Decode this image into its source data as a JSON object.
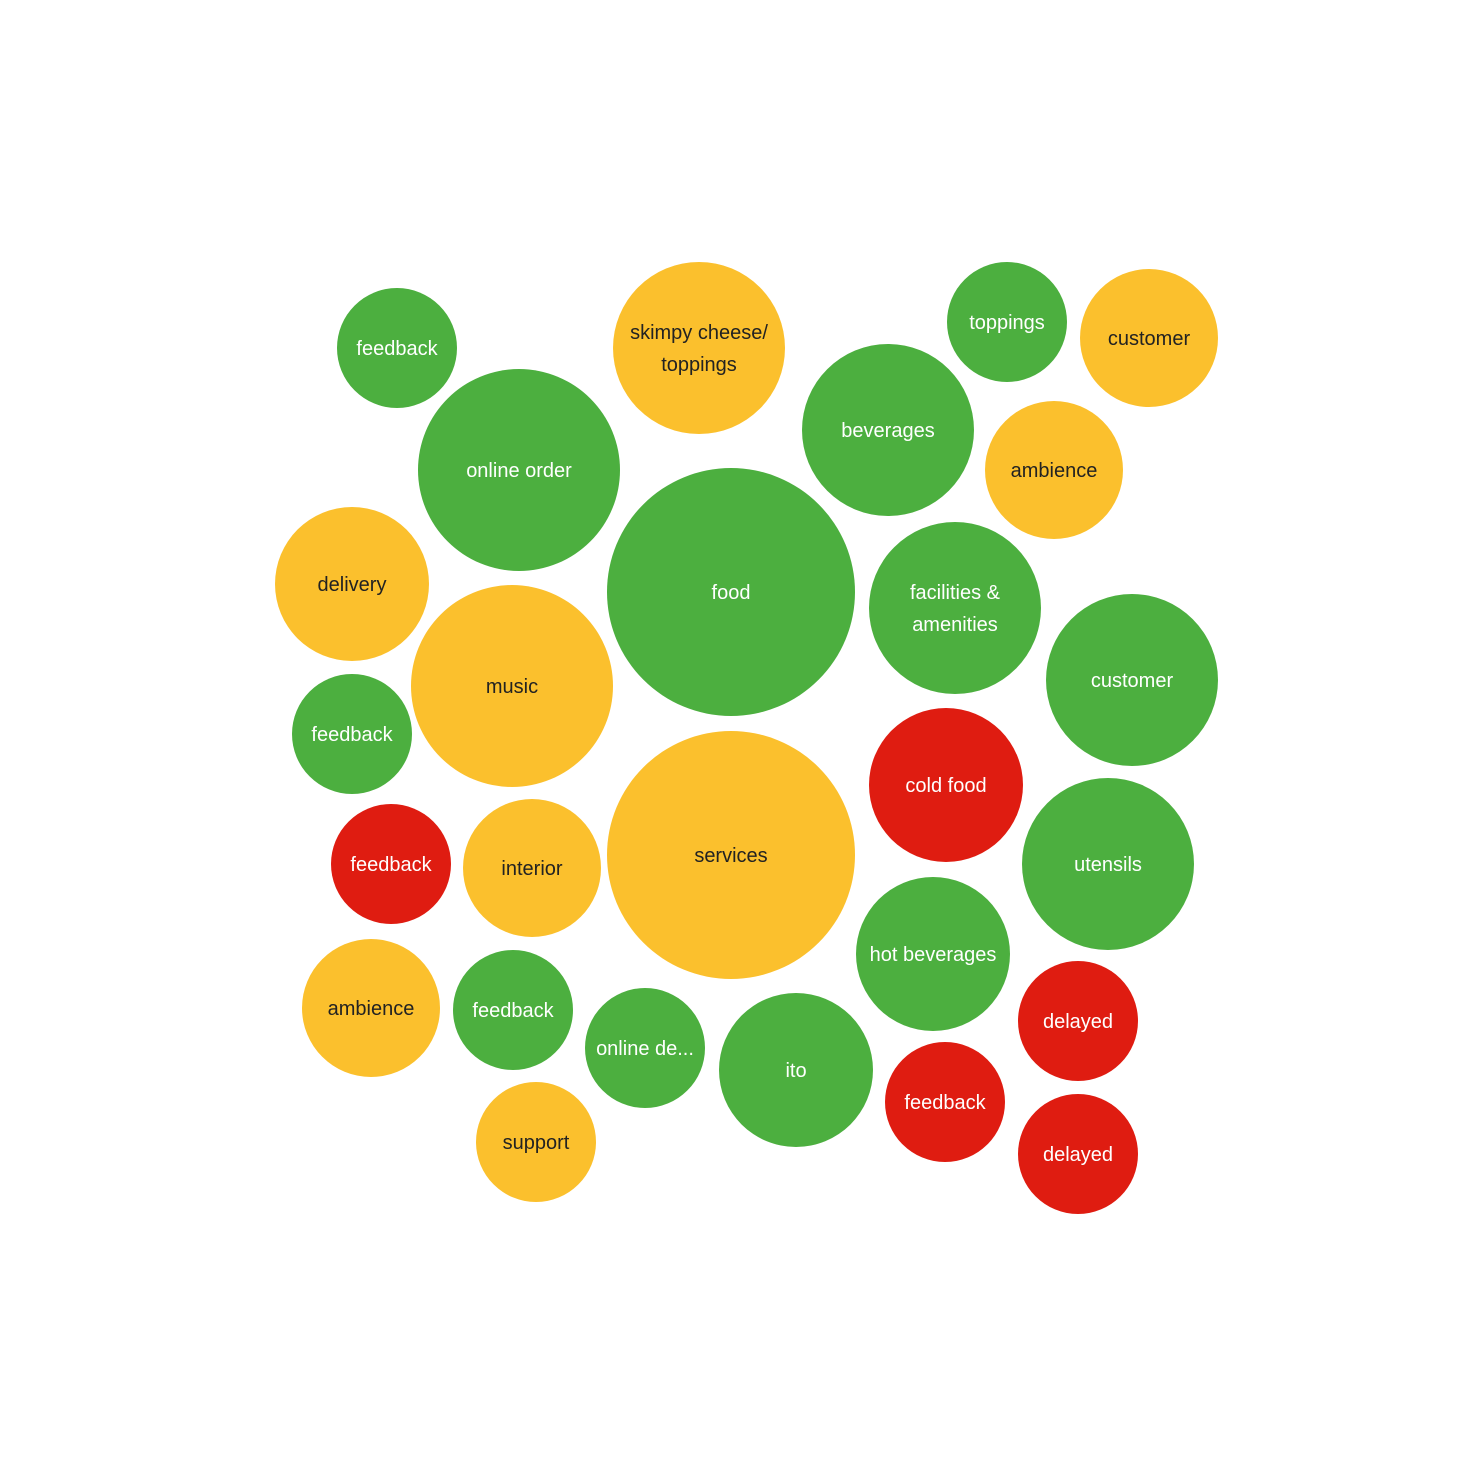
{
  "colors": {
    "green": "#4caf3f",
    "yellow": "#fbc02d",
    "red": "#df1c11",
    "label_on_green": "#ffffff",
    "label_on_red": "#ffffff",
    "label_on_yellow": "#222222"
  },
  "chart_data": {
    "type": "bubble",
    "title": "",
    "bubbles": [
      {
        "label": "feedback",
        "lines": [
          "feedback"
        ],
        "color": "green"
      },
      {
        "label": "skimpy cheese/ toppings",
        "lines": [
          "skimpy cheese/",
          "toppings"
        ],
        "color": "yellow"
      },
      {
        "label": "toppings",
        "lines": [
          "toppings"
        ],
        "color": "green"
      },
      {
        "label": "customer",
        "lines": [
          "customer"
        ],
        "color": "yellow"
      },
      {
        "label": "online order",
        "lines": [
          "online order"
        ],
        "color": "green"
      },
      {
        "label": "beverages",
        "lines": [
          "beverages"
        ],
        "color": "green"
      },
      {
        "label": "ambience",
        "lines": [
          "ambience"
        ],
        "color": "yellow"
      },
      {
        "label": "delivery",
        "lines": [
          "delivery"
        ],
        "color": "yellow"
      },
      {
        "label": "food",
        "lines": [
          "food"
        ],
        "color": "green"
      },
      {
        "label": "facilities & amenities",
        "lines": [
          "facilities &",
          "amenities"
        ],
        "color": "green"
      },
      {
        "label": "customer",
        "lines": [
          "customer"
        ],
        "color": "green"
      },
      {
        "label": "music",
        "lines": [
          "music"
        ],
        "color": "yellow"
      },
      {
        "label": "feedback",
        "lines": [
          "feedback"
        ],
        "color": "green"
      },
      {
        "label": "cold food",
        "lines": [
          "cold food"
        ],
        "color": "red"
      },
      {
        "label": "feedback",
        "lines": [
          "feedback"
        ],
        "color": "red"
      },
      {
        "label": "interior",
        "lines": [
          "interior"
        ],
        "color": "yellow"
      },
      {
        "label": "services",
        "lines": [
          "services"
        ],
        "color": "yellow"
      },
      {
        "label": "utensils",
        "lines": [
          "utensils"
        ],
        "color": "green"
      },
      {
        "label": "hot beverages",
        "lines": [
          "hot beverages"
        ],
        "color": "green"
      },
      {
        "label": "ambience",
        "lines": [
          "ambience"
        ],
        "color": "yellow"
      },
      {
        "label": "feedback",
        "lines": [
          "feedback"
        ],
        "color": "green"
      },
      {
        "label": "online de...",
        "lines": [
          "online de..."
        ],
        "color": "green"
      },
      {
        "label": "ito",
        "lines": [
          "ito"
        ],
        "color": "green"
      },
      {
        "label": "delayed",
        "lines": [
          "delayed"
        ],
        "color": "red"
      },
      {
        "label": "feedback",
        "lines": [
          "feedback"
        ],
        "color": "red"
      },
      {
        "label": "delayed",
        "lines": [
          "delayed"
        ],
        "color": "red"
      },
      {
        "label": "support",
        "lines": [
          "support"
        ],
        "color": "yellow"
      }
    ]
  }
}
